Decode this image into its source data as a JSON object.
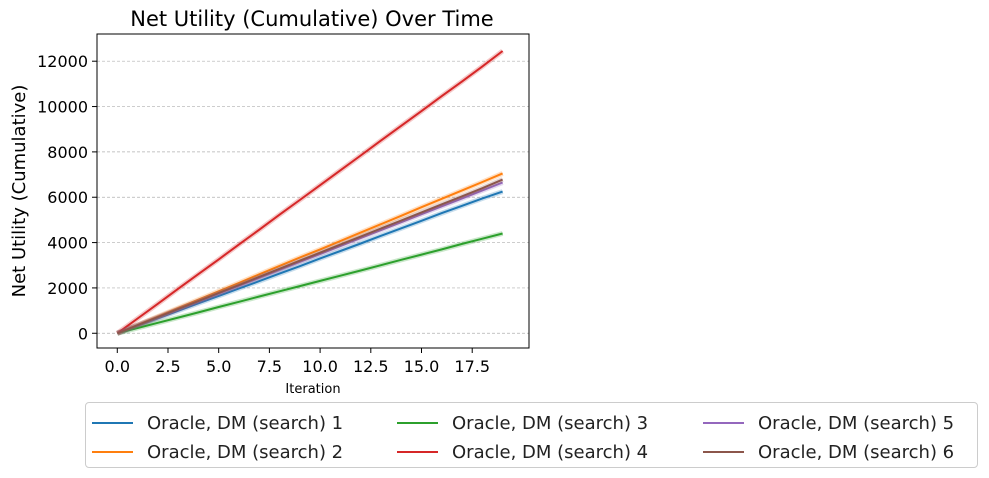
{
  "chart_data": {
    "type": "line",
    "title": "Net Utility (Cumulative) Over Time",
    "xlabel": "Iteration",
    "ylabel": "Net Utility (Cumulative)",
    "xlim": [
      -1,
      20.3
    ],
    "ylim": [
      -650,
      13200
    ],
    "xticks": [
      0.0,
      2.5,
      5.0,
      7.5,
      10.0,
      12.5,
      15.0,
      17.5
    ],
    "xtick_labels": [
      "0.0",
      "2.5",
      "5.0",
      "7.5",
      "10.0",
      "12.5",
      "15.0",
      "17.5"
    ],
    "yticks": [
      0,
      2000,
      4000,
      6000,
      8000,
      10000,
      12000
    ],
    "ytick_labels": [
      "0",
      "2000",
      "4000",
      "6000",
      "8000",
      "10000",
      "12000"
    ],
    "grid": "horizontal dashed",
    "legend_position": "below chart, 3 columns",
    "x": [
      0,
      1,
      2,
      3,
      4,
      5,
      6,
      7,
      8,
      9,
      10,
      11,
      12,
      13,
      14,
      15,
      16,
      17,
      18,
      19
    ],
    "series": [
      {
        "name": "Oracle, DM (search) 1",
        "color": "#1f77b4",
        "values": [
          0,
          330,
          660,
          990,
          1320,
          1650,
          1980,
          2300,
          2630,
          2960,
          3300,
          3630,
          3960,
          4300,
          4630,
          4960,
          5300,
          5620,
          5950,
          6250
        ]
      },
      {
        "name": "Oracle, DM (search) 2",
        "color": "#ff7f0e",
        "values": [
          0,
          370,
          740,
          1110,
          1480,
          1850,
          2220,
          2600,
          2970,
          3340,
          3700,
          4070,
          4440,
          4810,
          5180,
          5560,
          5930,
          6300,
          6670,
          7050
        ]
      },
      {
        "name": "Oracle, DM (search) 3",
        "color": "#2ca02c",
        "values": [
          0,
          230,
          460,
          690,
          920,
          1160,
          1390,
          1620,
          1850,
          2080,
          2310,
          2540,
          2770,
          3000,
          3240,
          3470,
          3700,
          3940,
          4170,
          4400
        ]
      },
      {
        "name": "Oracle, DM (search) 4",
        "color": "#d62728",
        "values": [
          0,
          650,
          1300,
          1960,
          2610,
          3260,
          3920,
          4570,
          5230,
          5880,
          6530,
          7190,
          7840,
          8500,
          9150,
          9800,
          10460,
          11110,
          11770,
          12450
        ]
      },
      {
        "name": "Oracle, DM (search) 5",
        "color": "#9467bd",
        "values": [
          0,
          350,
          700,
          1050,
          1400,
          1750,
          2100,
          2450,
          2800,
          3150,
          3500,
          3850,
          4200,
          4550,
          4900,
          5250,
          5600,
          5950,
          6300,
          6650
        ]
      },
      {
        "name": "Oracle, DM (search) 6",
        "color": "#8c564b",
        "values": [
          0,
          355,
          710,
          1065,
          1420,
          1775,
          2130,
          2490,
          2845,
          3200,
          3555,
          3910,
          4265,
          4620,
          4975,
          5330,
          5690,
          6040,
          6400,
          6780
        ]
      }
    ]
  }
}
